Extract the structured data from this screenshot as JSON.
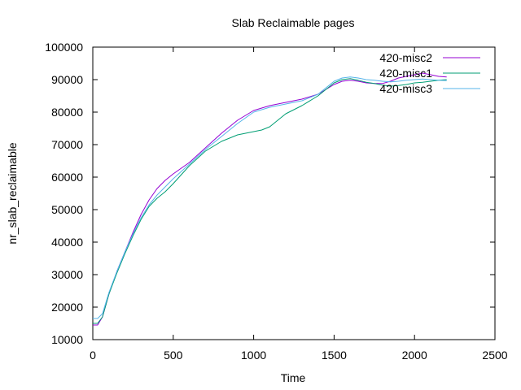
{
  "chart_data": {
    "type": "line",
    "title": "Slab Reclaimable pages",
    "xlabel": "Time",
    "ylabel": "nr_slab_reclaimable",
    "xlim": [
      0,
      2500
    ],
    "ylim": [
      10000,
      100000
    ],
    "xticks": [
      0,
      500,
      1000,
      1500,
      2000,
      2500
    ],
    "yticks": [
      10000,
      20000,
      30000,
      40000,
      50000,
      60000,
      70000,
      80000,
      90000,
      100000
    ],
    "legend_position": "top-right",
    "grid": false,
    "series": [
      {
        "name": "420-misc2",
        "color": "#9400d3",
        "x": [
          0,
          30,
          60,
          100,
          150,
          200,
          250,
          300,
          350,
          400,
          450,
          500,
          600,
          700,
          800,
          900,
          1000,
          1100,
          1200,
          1300,
          1400,
          1450,
          1500,
          1550,
          1600,
          1650,
          1700,
          1750,
          1800,
          1850,
          1900,
          1950,
          2000,
          2050,
          2100,
          2150,
          2200
        ],
        "values": [
          14500,
          14500,
          17000,
          24000,
          31000,
          37000,
          43000,
          48500,
          53000,
          56500,
          59000,
          61000,
          64500,
          69000,
          73500,
          77500,
          80500,
          82000,
          83000,
          84000,
          85500,
          87000,
          88500,
          89500,
          89800,
          89500,
          89000,
          88800,
          88800,
          89500,
          90500,
          91000,
          91500,
          92000,
          91500,
          91000,
          90800
        ]
      },
      {
        "name": "420-misc1",
        "color": "#009e73",
        "x": [
          0,
          30,
          60,
          100,
          150,
          200,
          250,
          300,
          350,
          400,
          450,
          500,
          600,
          700,
          800,
          900,
          1000,
          1050,
          1100,
          1150,
          1200,
          1300,
          1400,
          1450,
          1500,
          1550,
          1600,
          1650,
          1700,
          1750,
          1800,
          1850,
          1900,
          1950,
          2000,
          2050,
          2100,
          2150,
          2200
        ],
        "values": [
          15000,
          15000,
          17000,
          24000,
          30500,
          36500,
          42000,
          47000,
          51000,
          53500,
          55500,
          58000,
          63500,
          68000,
          71000,
          73000,
          74000,
          74500,
          75500,
          77500,
          79500,
          82000,
          85000,
          87000,
          89000,
          90000,
          90300,
          89800,
          89200,
          88800,
          88300,
          88000,
          88200,
          88500,
          89000,
          89200,
          89500,
          89800,
          90000
        ]
      },
      {
        "name": "420-misc3",
        "color": "#56b4e9",
        "x": [
          0,
          30,
          60,
          100,
          150,
          200,
          250,
          300,
          350,
          400,
          450,
          500,
          600,
          700,
          800,
          900,
          1000,
          1100,
          1200,
          1300,
          1400,
          1450,
          1500,
          1550,
          1600,
          1650,
          1700,
          1750,
          1800,
          1850,
          1900,
          1950,
          2000,
          2050,
          2100,
          2150,
          2200
        ],
        "values": [
          16500,
          16500,
          18000,
          24500,
          31000,
          37000,
          42500,
          47500,
          51500,
          54500,
          57000,
          59500,
          64000,
          68500,
          72500,
          76500,
          80000,
          81500,
          82500,
          83500,
          85500,
          87500,
          89500,
          90500,
          90800,
          90500,
          90000,
          89800,
          89500,
          89300,
          89500,
          89800,
          90000,
          90200,
          90000,
          89800,
          89700
        ]
      }
    ]
  }
}
